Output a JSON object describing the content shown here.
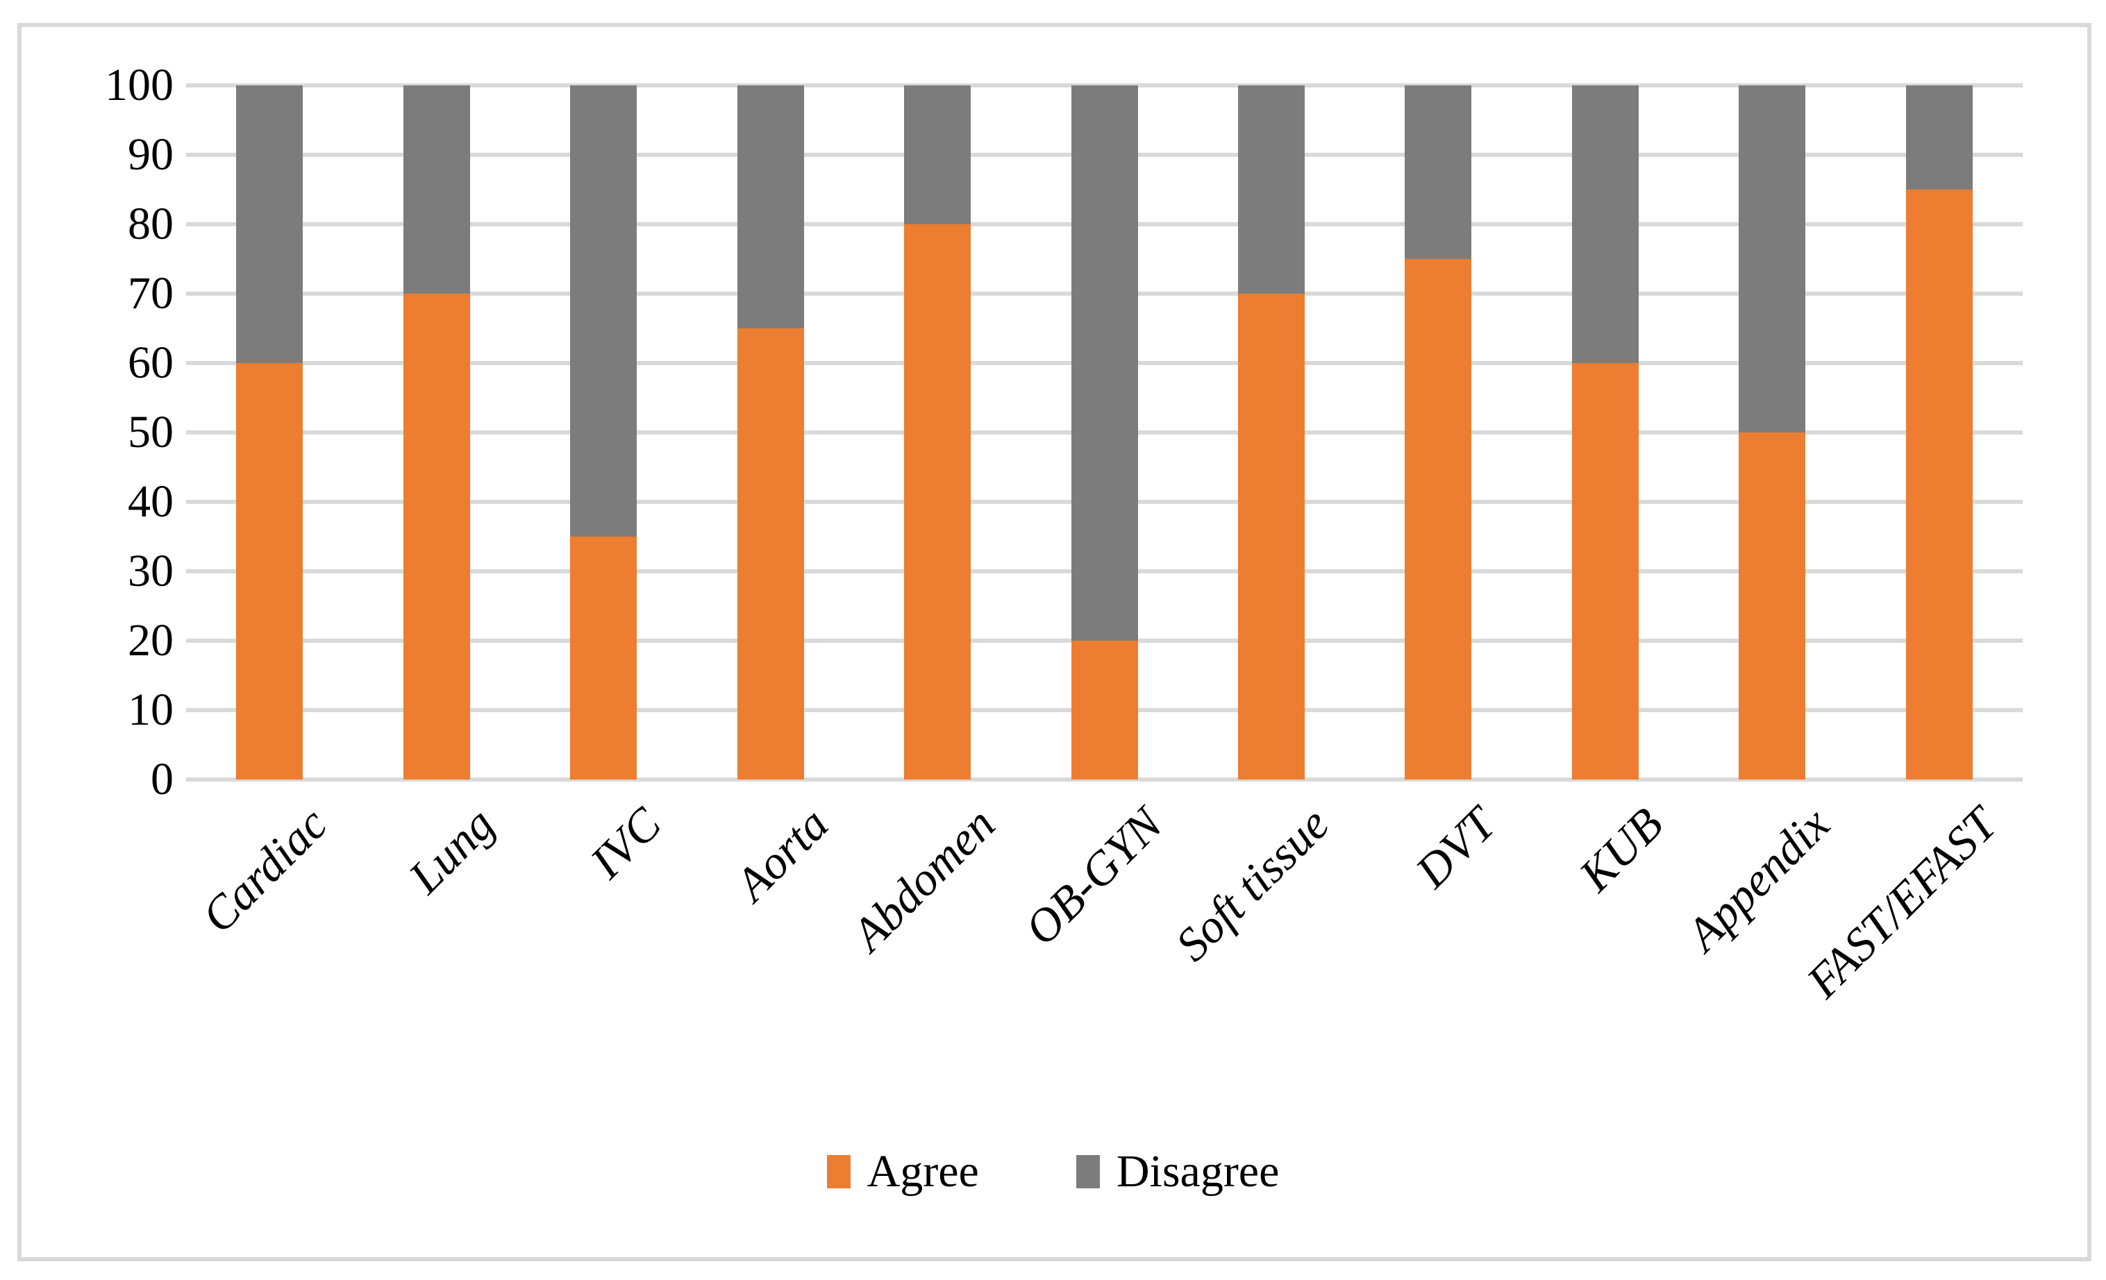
{
  "chart_data": {
    "type": "bar",
    "stacked": true,
    "orientation": "vertical",
    "title": "",
    "xlabel": "",
    "ylabel": "",
    "categories": [
      "Cardiac",
      "Lung",
      "IVC",
      "Aorta",
      "Abdomen",
      "OB-GYN",
      "Soft tissue",
      "DVT",
      "KUB",
      "Appendix",
      "FAST/EFAST"
    ],
    "series": [
      {
        "name": "Agree",
        "color": "#ED7D31",
        "values": [
          60,
          70,
          35,
          65,
          80,
          20,
          70,
          75,
          60,
          50,
          85
        ]
      },
      {
        "name": "Disagree",
        "color": "#7C7C7C",
        "values": [
          40,
          30,
          65,
          35,
          20,
          80,
          30,
          25,
          40,
          50,
          15
        ]
      }
    ],
    "ylim": [
      0,
      100
    ],
    "yticks": [
      0,
      10,
      20,
      30,
      40,
      50,
      60,
      70,
      80,
      90,
      100
    ],
    "grid": true,
    "gridline_color": "#D9D9D9",
    "axis_text_color": "#000000",
    "legend_position": "bottom-center",
    "x_label_rotation_deg": 45
  },
  "legend": {
    "agree_label": "Agree",
    "disagree_label": "Disagree"
  }
}
